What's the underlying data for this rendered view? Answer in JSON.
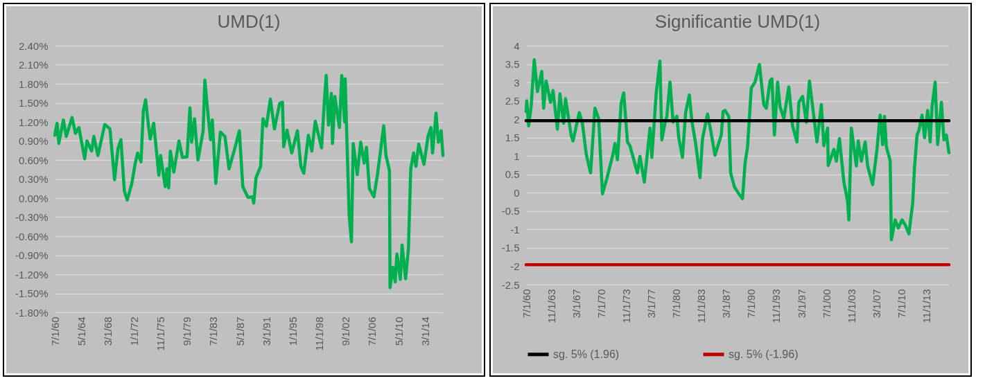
{
  "chart_data": [
    {
      "type": "line",
      "title": "UMD(1)",
      "x": [
        "1960-07",
        "1960-11",
        "1961-02",
        "1961-10",
        "1962-03",
        "1963-01",
        "1963-07",
        "1964-01",
        "1964-11",
        "1965-03",
        "1965-11",
        "1966-03",
        "1966-10",
        "1967-10",
        "1968-07",
        "1969-03",
        "1969-09",
        "1970-02",
        "1970-08",
        "1971-01",
        "1971-09",
        "1972-03",
        "1972-07",
        "1973-01",
        "1973-05",
        "1973-09",
        "1974-02",
        "1974-05",
        "1974-11",
        "1975-08",
        "1975-11",
        "1976-07",
        "1976-10",
        "1977-01",
        "1977-04",
        "1977-10",
        "1978-07",
        "1979-01",
        "1979-09",
        "1980-02",
        "1980-05",
        "1980-10",
        "1981-04",
        "1982-01",
        "1982-04",
        "1982-10",
        "1983-02",
        "1983-05",
        "1983-11",
        "1984-07",
        "1985-03",
        "1985-10",
        "1986-08",
        "1987-04",
        "1987-10",
        "1988-07",
        "1989-03",
        "1989-05",
        "1989-09",
        "1990-05",
        "1990-09",
        "1991-03",
        "1991-10",
        "1992-05",
        "1993-02",
        "1993-07",
        "1993-09",
        "1994-03",
        "1994-11",
        "1995-09",
        "1996-03",
        "1996-08",
        "1997-04",
        "1997-10",
        "1998-04",
        "1999-03",
        "1999-08",
        "1999-11",
        "2000-03",
        "2000-08",
        "2000-10",
        "2001-02",
        "2001-10",
        "2002-02",
        "2002-07",
        "2002-08",
        "2002-11",
        "2003-03",
        "2003-07",
        "2003-10",
        "2004-05",
        "2004-11",
        "2005-05",
        "2005-09",
        "2006-02",
        "2006-10",
        "2007-04",
        "2007-09",
        "2008-03",
        "2008-07",
        "2009-01",
        "2009-02",
        "2009-07",
        "2009-11",
        "2010-02",
        "2010-08",
        "2010-11",
        "2011-05",
        "2011-10",
        "2012-02",
        "2012-07",
        "2012-11",
        "2013-04",
        "2014-01",
        "2014-08",
        "2015-01",
        "2015-04",
        "2015-10",
        "2016-02",
        "2016-07",
        "2016-10"
      ],
      "series": [
        {
          "color": "#00b050",
          "values": [
            0.99,
            1.18,
            0.86,
            1.23,
            0.97,
            1.27,
            1.02,
            1.11,
            0.62,
            0.9,
            0.74,
            0.97,
            0.67,
            1.16,
            1.09,
            0.29,
            0.78,
            0.92,
            0.11,
            -0.03,
            0.23,
            0.55,
            0.71,
            0.57,
            1.37,
            1.55,
            1.13,
            0.93,
            1.18,
            0.36,
            0.67,
            0.18,
            0.46,
            0.16,
            0.74,
            0.41,
            0.9,
            0.64,
            0.65,
            1.42,
            0.88,
            1.25,
            0.6,
            1.06,
            1.86,
            1.27,
            0.92,
            1.23,
            0.23,
            1.04,
            0.97,
            0.46,
            0.78,
            1.06,
            0.18,
            0.01,
            0.02,
            -0.08,
            0.32,
            0.5,
            1.25,
            1.13,
            1.56,
            1.09,
            1.49,
            1.51,
            0.81,
            1.07,
            0.71,
            1.06,
            0.5,
            0.39,
            0.99,
            0.74,
            1.21,
            0.79,
            1.55,
            1.93,
            1.15,
            1.65,
            0.86,
            1.6,
            1.11,
            1.93,
            1.2,
            1.88,
            0.92,
            -0.27,
            -0.69,
            0.86,
            0.37,
            0.88,
            0.55,
            0.8,
            0.15,
            0.02,
            0.36,
            0.71,
            1.14,
            0.67,
            0.43,
            -1.41,
            -1.09,
            -1.32,
            -0.88,
            -1.28,
            -0.74,
            -1.27,
            -0.8,
            0.46,
            0.71,
            0.5,
            0.85,
            0.53,
            0.97,
            1.11,
            0.71,
            1.34,
            0.88,
            1.06,
            0.67
          ]
        }
      ],
      "xlim": [
        "1960-07",
        "2016-10"
      ],
      "xticks": [
        {
          "value": "1960-07-01",
          "label": "7/1/60"
        },
        {
          "value": "1964-05-01",
          "label": "5/1/64"
        },
        {
          "value": "1968-03-01",
          "label": "3/1/68"
        },
        {
          "value": "1972-01-01",
          "label": "1/1/72"
        },
        {
          "value": "1975-11-01",
          "label": "11/1/75"
        },
        {
          "value": "1979-09-01",
          "label": "9/1/79"
        },
        {
          "value": "1983-07-01",
          "label": "7/1/83"
        },
        {
          "value": "1987-05-01",
          "label": "5/1/87"
        },
        {
          "value": "1991-03-01",
          "label": "3/1/91"
        },
        {
          "value": "1995-01-01",
          "label": "1/1/95"
        },
        {
          "value": "1998-11-01",
          "label": "11/1/98"
        },
        {
          "value": "2002-09-01",
          "label": "9/1/02"
        },
        {
          "value": "2006-07-01",
          "label": "7/1/06"
        },
        {
          "value": "2010-05-01",
          "label": "5/1/10"
        },
        {
          "value": "2014-03-01",
          "label": "3/1/14"
        }
      ],
      "ylim": [
        -1.8,
        2.4
      ],
      "yticks": [
        {
          "value": -1.8,
          "label": "-1.80%"
        },
        {
          "value": -1.5,
          "label": "-1.50%"
        },
        {
          "value": -1.2,
          "label": "-1.20%"
        },
        {
          "value": -0.9,
          "label": "-0.90%"
        },
        {
          "value": -0.6,
          "label": "-0.60%"
        },
        {
          "value": -0.3,
          "label": "-0.30%"
        },
        {
          "value": 0,
          "label": "0.00%"
        },
        {
          "value": 0.3,
          "label": "0.30%"
        },
        {
          "value": 0.6,
          "label": "0.60%"
        },
        {
          "value": 0.9,
          "label": "0.90%"
        },
        {
          "value": 1.2,
          "label": "1.20%"
        },
        {
          "value": 1.5,
          "label": "1.50%"
        },
        {
          "value": 1.8,
          "label": "1.80%"
        },
        {
          "value": 2.1,
          "label": "2.10%"
        },
        {
          "value": 2.4,
          "label": "2.40%"
        }
      ],
      "grid": "y"
    },
    {
      "type": "line",
      "title": "Significantie UMD(1)",
      "x": [
        "1960-07",
        "1960-08",
        "1960-11",
        "1961-03",
        "1961-08",
        "1962-01",
        "1962-08",
        "1962-11",
        "1963-03",
        "1963-10",
        "1964-02",
        "1964-09",
        "1965-01",
        "1965-07",
        "1965-10",
        "1966-07",
        "1966-10",
        "1967-08",
        "1968-01",
        "1968-07",
        "1969-02",
        "1969-09",
        "1970-03",
        "1970-09",
        "1971-04",
        "1972-02",
        "1972-05",
        "1972-09",
        "1973-03",
        "1973-07",
        "1974-01",
        "1974-05",
        "1975-05",
        "1975-09",
        "1976-04",
        "1977-01",
        "1977-04",
        "1977-11",
        "1978-05",
        "1978-08",
        "1979-01",
        "1979-04",
        "1979-09",
        "1980-02",
        "1980-08",
        "1980-11",
        "1981-05",
        "1981-10",
        "1982-04",
        "1982-08",
        "1983-02",
        "1983-09",
        "1984-01",
        "1984-09",
        "1985-02",
        "1985-09",
        "1986-07",
        "1986-10",
        "1987-01",
        "1987-07",
        "1987-10",
        "1988-04",
        "1988-11",
        "1989-05",
        "1989-09",
        "1990-01",
        "1990-07",
        "1991-01",
        "1991-08",
        "1992-03",
        "1992-07",
        "1993-01",
        "1993-04",
        "1993-08",
        "1994-01",
        "1994-05",
        "1994-11",
        "1995-07",
        "1996-01",
        "1996-08",
        "1996-11",
        "1997-05",
        "1997-11",
        "1998-04",
        "1998-10",
        "1999-04",
        "1999-11",
        "2000-03",
        "2000-09",
        "2000-10",
        "2001-07",
        "2001-11",
        "2002-04",
        "2002-11",
        "2003-05",
        "2003-07",
        "2003-11",
        "2004-07",
        "2004-10",
        "2005-03",
        "2005-09",
        "2006-01",
        "2006-09",
        "2007-04",
        "2007-09",
        "2008-01",
        "2008-04",
        "2008-07",
        "2009-01",
        "2009-03",
        "2009-09",
        "2010-02",
        "2010-08",
        "2011-01",
        "2011-07",
        "2012-01",
        "2012-04",
        "2012-08",
        "2012-11",
        "2013-04",
        "2013-08",
        "2014-01",
        "2014-05",
        "2014-08",
        "2015-01",
        "2015-05",
        "2015-11",
        "2016-03",
        "2016-07",
        "2016-11"
      ],
      "series": [
        {
          "color": "#00b050",
          "values": [
            2.21,
            2.5,
            1.82,
            2.34,
            3.62,
            2.75,
            3.3,
            2.3,
            3.04,
            2.46,
            2.78,
            1.73,
            2.69,
            1.89,
            2.56,
            1.57,
            1.41,
            2.18,
            1.89,
            1.06,
            0.54,
            2.3,
            2.02,
            -0.03,
            0.38,
            1.06,
            1.34,
            0.9,
            2.43,
            2.72,
            1.38,
            1.28,
            0.54,
            0.99,
            0.29,
            1.76,
            0.96,
            2.72,
            3.58,
            1.44,
            1.89,
            2.08,
            3.01,
            1.92,
            2.08,
            1.5,
            0.96,
            2.18,
            2.66,
            1.95,
            1.34,
            0.41,
            1.47,
            2.14,
            1.7,
            1.02,
            1.57,
            2.21,
            2.24,
            2.08,
            0.54,
            0.16,
            -0.03,
            -0.16,
            0.8,
            1.25,
            2.85,
            3.01,
            3.49,
            2.4,
            2.3,
            3.04,
            3.1,
            1.57,
            3.01,
            2.34,
            2.02,
            2.88,
            1.82,
            1.38,
            2.46,
            2.62,
            1.92,
            3.04,
            2.21,
            1.38,
            2.4,
            1.28,
            1.76,
            0.74,
            1.18,
            0.86,
            1.47,
            0.29,
            -0.23,
            -0.74,
            1.76,
            0.73,
            1.41,
            0.86,
            1.38,
            0.73,
            0.22,
            1.18,
            2.11,
            1.31,
            2.08,
            1.25,
            0.87,
            -1.28,
            -0.74,
            -0.96,
            -0.74,
            -0.87,
            -1.12,
            -0.29,
            0.7,
            1.57,
            1.7,
            2.11,
            1.5,
            2.24,
            1.38,
            2.34,
            3.01,
            1.31,
            2.46,
            1.44,
            1.57,
            1.09
          ]
        }
      ],
      "xlim": [
        "1960-07",
        "2016-11"
      ],
      "xticks": [
        {
          "value": "1960-07-01",
          "label": "7/1/60"
        },
        {
          "value": "1963-11-01",
          "label": "11/1/63"
        },
        {
          "value": "1967-03-01",
          "label": "3/1/67"
        },
        {
          "value": "1970-07-01",
          "label": "7/1/70"
        },
        {
          "value": "1973-11-01",
          "label": "11/1/73"
        },
        {
          "value": "1977-03-01",
          "label": "3/1/77"
        },
        {
          "value": "1980-07-01",
          "label": "7/1/80"
        },
        {
          "value": "1983-11-01",
          "label": "11/1/83"
        },
        {
          "value": "1987-03-01",
          "label": "3/1/87"
        },
        {
          "value": "1990-07-01",
          "label": "7/1/90"
        },
        {
          "value": "1993-11-01",
          "label": "11/1/93"
        },
        {
          "value": "1997-03-01",
          "label": "3/1/97"
        },
        {
          "value": "2000-07-01",
          "label": "7/1/00"
        },
        {
          "value": "2003-11-01",
          "label": "11/1/03"
        },
        {
          "value": "2007-03-01",
          "label": "3/1/07"
        },
        {
          "value": "2010-07-01",
          "label": "7/1/10"
        },
        {
          "value": "2013-11-01",
          "label": "11/1/13"
        }
      ],
      "ylim": [
        -2.5,
        4
      ],
      "yticks": [
        -2.5,
        -2,
        -1.5,
        -1,
        -0.5,
        0,
        0.5,
        1,
        1.5,
        2,
        2.5,
        3,
        3.5,
        4
      ],
      "grid": "y",
      "ref_lines": [
        {
          "axis": "y",
          "value": 1.96,
          "label": "sg. 5% (1.96)",
          "color": "#000000"
        },
        {
          "axis": "y",
          "value": -1.96,
          "label": "sg. 5% (-1.96)",
          "color": "#c00000"
        }
      ],
      "legend": "bottom"
    }
  ]
}
